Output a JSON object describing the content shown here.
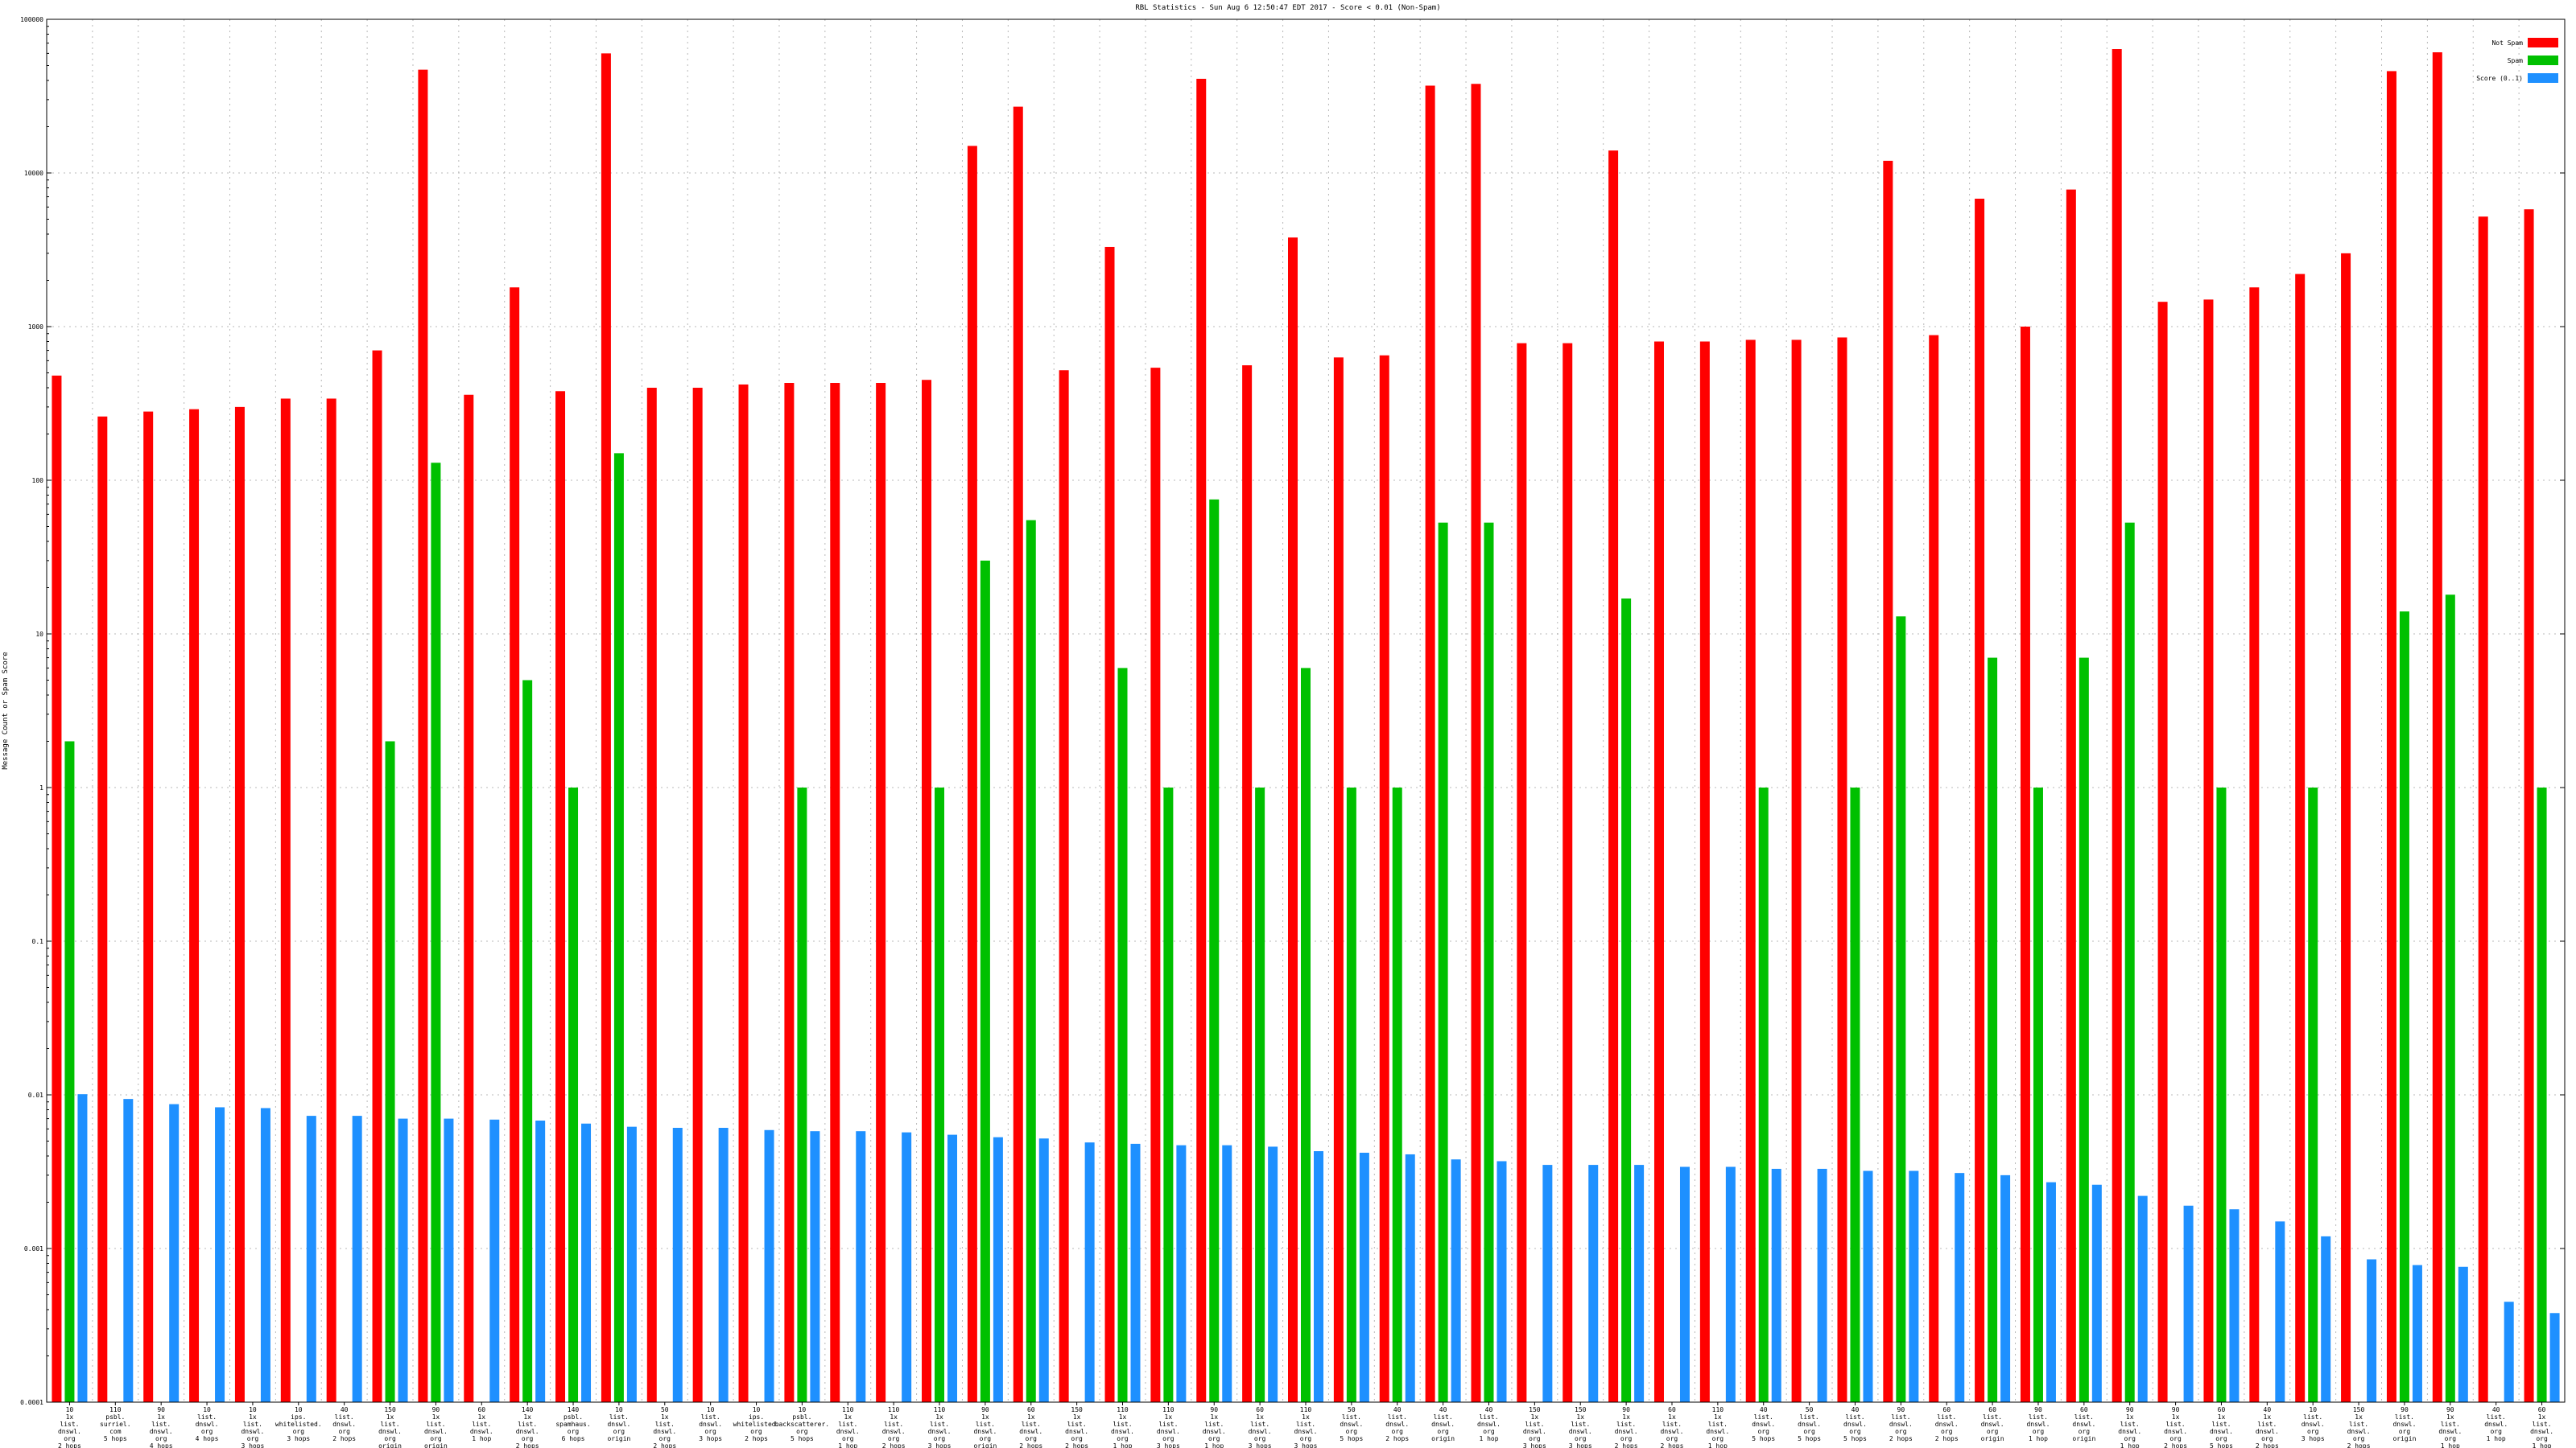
{
  "chart_data": {
    "type": "bar",
    "title": "RBL Statistics - Sun Aug  6 12:50:47 EDT 2017 - Score < 0.01 (Non-Spam)",
    "ylabel": "Message Count or Spam Score",
    "xlabel": "",
    "y_scale": "log",
    "ylim": [
      0.0001,
      100000
    ],
    "y_tick_labels": [
      "0.0001",
      "0.001",
      "0.01",
      "0.1",
      "1",
      "10",
      "100",
      "1000",
      "10000",
      "100000"
    ],
    "grid": true,
    "legend_position": "top-right",
    "series": [
      {
        "name": "Not Spam",
        "color": "#ff0000",
        "values": [
          480,
          260,
          280,
          290,
          300,
          340,
          340,
          700,
          47000,
          360,
          1800,
          380,
          60000,
          400,
          400,
          420,
          430,
          430,
          430,
          450,
          15000,
          27000,
          520,
          3300,
          540,
          41000,
          560,
          3800,
          630,
          650,
          37000,
          38000,
          780,
          780,
          14000,
          800,
          800,
          820,
          820,
          850,
          12000,
          880,
          6800,
          1000,
          7800,
          64000,
          1450,
          1500,
          1800,
          2200,
          3000,
          46000,
          61000,
          5200,
          5800
        ]
      },
      {
        "name": "Spam",
        "color": "#00c000",
        "values": [
          2,
          null,
          null,
          null,
          null,
          null,
          null,
          2,
          130,
          null,
          5,
          1,
          150,
          null,
          null,
          null,
          1,
          null,
          null,
          1,
          30,
          55,
          null,
          6,
          1,
          75,
          1,
          6,
          1,
          1,
          53,
          53,
          null,
          null,
          17,
          null,
          null,
          1,
          null,
          1,
          13,
          null,
          7,
          1,
          7,
          53,
          null,
          1,
          null,
          1,
          null,
          14,
          18,
          null,
          1
        ]
      },
      {
        "name": "Score (0..1)",
        "color": "#1e90ff",
        "values": [
          0.0101,
          0.0094,
          0.0087,
          0.0083,
          0.0082,
          0.0073,
          0.0073,
          0.007,
          0.007,
          0.0069,
          0.0068,
          0.0065,
          0.0062,
          0.0061,
          0.0061,
          0.0059,
          0.0058,
          0.0058,
          0.0057,
          0.0055,
          0.0053,
          0.0052,
          0.0049,
          0.0048,
          0.0047,
          0.0047,
          0.0046,
          0.0043,
          0.0042,
          0.0041,
          0.0038,
          0.0037,
          0.0035,
          0.0035,
          0.0035,
          0.0034,
          0.0034,
          0.0033,
          0.0033,
          0.0032,
          0.0032,
          0.0031,
          0.003,
          0.0027,
          0.0026,
          0.0022,
          0.0019,
          0.0018,
          0.0015,
          0.0012,
          0.00085,
          0.00078,
          0.00076,
          0.00045,
          0.00038
        ]
      }
    ],
    "categories": [
      [
        "10",
        "1x",
        "list.",
        "dnswl.",
        "org",
        "2 hops"
      ],
      [
        "110",
        "psbl.",
        "surriel.",
        "com",
        "5 hops"
      ],
      [
        "90",
        "1x",
        "list.",
        "dnswl.",
        "org",
        "4 hops"
      ],
      [
        "10",
        "list.",
        "dnswl.",
        "org",
        "4 hops"
      ],
      [
        "10",
        "1x",
        "list.",
        "dnswl.",
        "org",
        "3 hops"
      ],
      [
        "10",
        "ips.",
        "whitelisted.",
        "org",
        "3 hops"
      ],
      [
        "40",
        "list.",
        "dnswl.",
        "org",
        "2 hops"
      ],
      [
        "150",
        "1x",
        "list.",
        "dnswl.",
        "org",
        "origin"
      ],
      [
        "90",
        "1x",
        "list.",
        "dnswl.",
        "org",
        "origin"
      ],
      [
        "60",
        "1x",
        "list.",
        "dnswl.",
        "1 hop"
      ],
      [
        "140",
        "1x",
        "list.",
        "dnswl.",
        "org",
        "2 hops"
      ],
      [
        "140",
        "psbl.",
        "spamhaus.",
        "org",
        "6 hops"
      ],
      [
        "10",
        "list.",
        "dnswl.",
        "org",
        "origin"
      ],
      [
        "50",
        "1x",
        "list.",
        "dnswl.",
        "org",
        "2 hops"
      ],
      [
        "10",
        "list.",
        "dnswl.",
        "org",
        "3 hops"
      ],
      [
        "10",
        "ips.",
        "whitelisted.",
        "org",
        "2 hops"
      ],
      [
        "10",
        "psbl.",
        "backscatterer.",
        "org",
        "5 hops"
      ],
      [
        "110",
        "1x",
        "list.",
        "dnswl.",
        "org",
        "1 hop"
      ],
      [
        "110",
        "1x",
        "list.",
        "dnswl.",
        "org",
        "2 hops"
      ],
      [
        "110",
        "1x",
        "list.",
        "dnswl.",
        "org",
        "3 hops"
      ],
      [
        "90",
        "1x",
        "list.",
        "dnswl.",
        "org",
        "origin"
      ],
      [
        "60",
        "1x",
        "list.",
        "dnswl.",
        "org",
        "2 hops"
      ],
      [
        "150",
        "1x",
        "list.",
        "dnswl.",
        "org",
        "2 hops"
      ],
      [
        "110",
        "1x",
        "list.",
        "dnswl.",
        "org",
        "1 hop"
      ],
      [
        "110",
        "1x",
        "list.",
        "dnswl.",
        "org",
        "3 hops"
      ],
      [
        "90",
        "1x",
        "list.",
        "dnswl.",
        "org",
        "1 hop"
      ],
      [
        "60",
        "1x",
        "list.",
        "dnswl.",
        "org",
        "3 hops"
      ],
      [
        "110",
        "1x",
        "list.",
        "dnswl.",
        "org",
        "3 hops"
      ],
      [
        "50",
        "list.",
        "dnswl.",
        "org",
        "5 hops"
      ],
      [
        "40",
        "list.",
        "dnswl.",
        "org",
        "2 hops"
      ],
      [
        "40",
        "list.",
        "dnswl.",
        "org",
        "origin"
      ],
      [
        "40",
        "list.",
        "dnswl.",
        "org",
        "1 hop"
      ],
      [
        "150",
        "1x",
        "list.",
        "dnswl.",
        "org",
        "3 hops"
      ],
      [
        "150",
        "1x",
        "list.",
        "dnswl.",
        "org",
        "3 hops"
      ],
      [
        "90",
        "1x",
        "list.",
        "dnswl.",
        "org",
        "2 hops"
      ],
      [
        "60",
        "1x",
        "list.",
        "dnswl.",
        "org",
        "2 hops"
      ],
      [
        "110",
        "1x",
        "list.",
        "dnswl.",
        "org",
        "1 hop"
      ],
      [
        "40",
        "list.",
        "dnswl.",
        "org",
        "5 hops"
      ],
      [
        "50",
        "list.",
        "dnswl.",
        "org",
        "5 hops"
      ],
      [
        "40",
        "list.",
        "dnswl.",
        "org",
        "5 hops"
      ],
      [
        "90",
        "list.",
        "dnswl.",
        "org",
        "2 hops"
      ],
      [
        "60",
        "list.",
        "dnswl.",
        "org",
        "2 hops"
      ],
      [
        "60",
        "list.",
        "dnswl.",
        "org",
        "origin"
      ],
      [
        "90",
        "list.",
        "dnswl.",
        "org",
        "1 hop"
      ],
      [
        "60",
        "list.",
        "dnswl.",
        "org",
        "origin"
      ],
      [
        "90",
        "1x",
        "list.",
        "dnswl.",
        "org",
        "1 hop"
      ],
      [
        "90",
        "1x",
        "list.",
        "dnswl.",
        "org",
        "2 hops"
      ],
      [
        "60",
        "1x",
        "list.",
        "dnswl.",
        "org",
        "5 hops"
      ],
      [
        "40",
        "1x",
        "list.",
        "dnswl.",
        "org",
        "2 hops"
      ],
      [
        "10",
        "list.",
        "dnswl.",
        "org",
        "3 hops"
      ],
      [
        "150",
        "1x",
        "list.",
        "dnswl.",
        "org",
        "2 hops"
      ],
      [
        "90",
        "list.",
        "dnswl.",
        "org",
        "origin"
      ],
      [
        "90",
        "1x",
        "list.",
        "dnswl.",
        "org",
        "1 hop"
      ],
      [
        "40",
        "list.",
        "dnswl.",
        "org",
        "1 hop"
      ],
      [
        "60",
        "1x",
        "list.",
        "dnswl.",
        "org",
        "1 hop"
      ]
    ]
  }
}
